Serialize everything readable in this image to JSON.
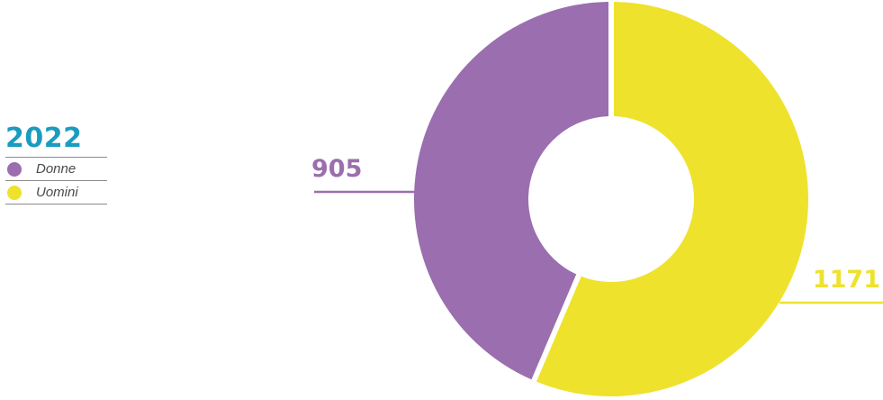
{
  "chart_data": {
    "type": "pie",
    "title": "2022",
    "subtype": "donut",
    "legend_position": "left",
    "series": [
      {
        "name": "Donne",
        "value": 905,
        "color": "#9B6EAF"
      },
      {
        "name": "Uomini",
        "value": 1171,
        "color": "#EEE22D"
      }
    ],
    "value_labels": [
      "905",
      "1171"
    ]
  },
  "legend": {
    "year": "2022",
    "items": [
      {
        "label": "Donne",
        "color": "#9B6EAF"
      },
      {
        "label": "Uomini",
        "color": "#EEE22D"
      }
    ]
  },
  "colors": {
    "title": "#1A9CC0",
    "rule": "#8a8a8a",
    "background": "#ffffff"
  }
}
